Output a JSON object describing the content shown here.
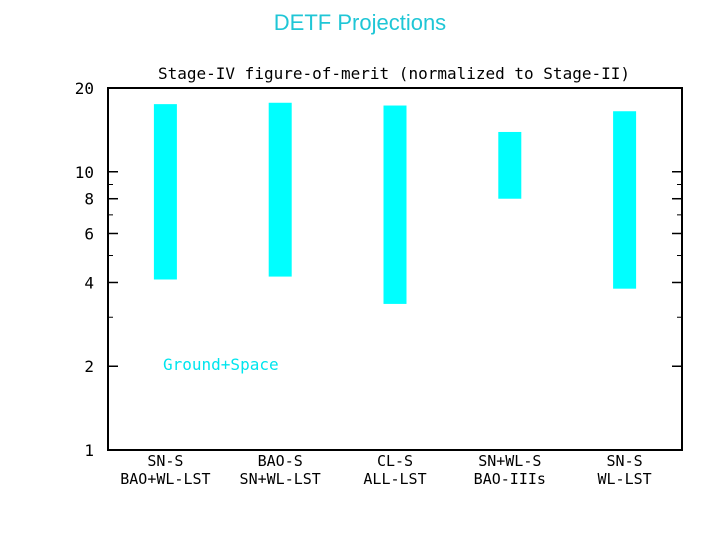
{
  "slide": {
    "title": "DETF Projections"
  },
  "colors": {
    "bar": "#00ffff",
    "axis": "#000000",
    "title_text": "#1fc6d6",
    "annotation": "#00e5ee"
  },
  "chart_data": {
    "type": "bar",
    "title": "Stage-IV figure-of-merit (normalized to Stage-II)",
    "xlabel": "",
    "ylabel": "",
    "yscale": "log",
    "ylim": [
      1,
      20
    ],
    "yticks": [
      1,
      2,
      4,
      6,
      8,
      10,
      20
    ],
    "ytick_labels": [
      "1",
      "2",
      "4",
      "6",
      "8",
      "10",
      "20"
    ],
    "grid": false,
    "categories": [
      {
        "line1": "SN-S",
        "line2": "BAO+WL-LST"
      },
      {
        "line1": "BAO-S",
        "line2": "SN+WL-LST"
      },
      {
        "line1": "CL-S",
        "line2": "ALL-LST"
      },
      {
        "line1": "SN+WL-S",
        "line2": "BAO-IIIs"
      },
      {
        "line1": "SN-S",
        "line2": "WL-LST"
      }
    ],
    "ranges": [
      {
        "low": 4.1,
        "high": 17.5
      },
      {
        "low": 4.2,
        "high": 17.7
      },
      {
        "low": 3.35,
        "high": 17.3
      },
      {
        "low": 8.0,
        "high": 13.9
      },
      {
        "low": 3.8,
        "high": 16.5
      }
    ],
    "annotation": "Ground+Space"
  }
}
